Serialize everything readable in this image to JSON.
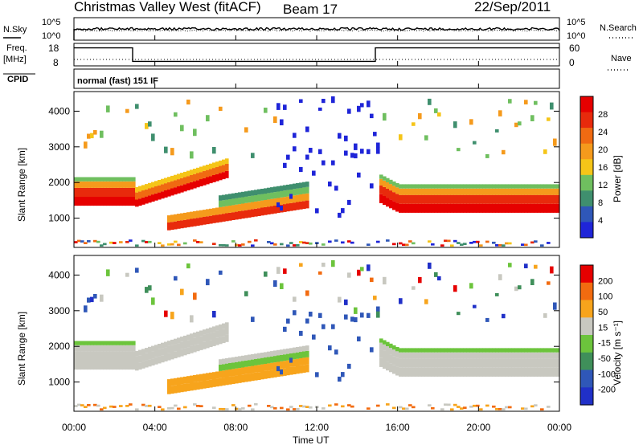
{
  "header": {
    "station": "Christmas Valley West (fitACF)",
    "beam": "Beam 17",
    "date": "22/Sep/2011"
  },
  "labels": {
    "nsky": "N.Sky",
    "nsearch": "N.Search",
    "freq": "Freq.",
    "freq_unit": "[MHz]",
    "nave": "Nave",
    "cpid": "CPID",
    "mode": "normal (fast) 151 IF",
    "x_axis": "Time UT",
    "slant_range": "Slant Range [km]",
    "power_label": "Power [dB]",
    "velocity_label": "Velocity [m s⁻¹]"
  },
  "colors": {
    "power": [
      "#1f25d8",
      "#2f57b8",
      "#3f8f6e",
      "#6fbf5f",
      "#f5c518",
      "#f59a1c",
      "#f06a12",
      "#e82a0c",
      "#e60000"
    ],
    "velocity": [
      "#e60000",
      "#f26b10",
      "#f7a41c",
      "#c8c8c0",
      "#6cc43c",
      "#3f8f5a",
      "#2f57b8",
      "#2030c8"
    ]
  },
  "chart_data": [
    {
      "type": "line",
      "name": "N.Sky / N.Search noise",
      "y_scale": "log",
      "y_ticks": [
        "10^5",
        "10^0"
      ],
      "x_ticks": [
        "00:00",
        "04:00",
        "08:00",
        "12:00",
        "16:00",
        "20:00",
        "00:00"
      ],
      "xlabel": "",
      "ylabel": ""
    },
    {
      "type": "line",
      "name": "Freq / Nave",
      "x_hours": [
        0,
        2.9,
        2.9,
        14.9,
        14.9,
        24
      ],
      "freq_mhz": [
        16,
        16,
        10,
        10,
        16,
        16
      ],
      "left_ticks": [
        "18",
        "8"
      ],
      "right_ticks": [
        "60",
        "0"
      ],
      "xlabel": "",
      "ylabel": "Freq. [MHz]"
    },
    {
      "type": "heatmap",
      "name": "Power",
      "xlabel": "Time UT",
      "ylabel": "Slant Range [km]",
      "x_ticks": [
        "00:00",
        "04:00",
        "08:00",
        "12:00",
        "16:00",
        "20:00",
        "00:00"
      ],
      "y_ticks": [
        1000,
        2000,
        3000,
        4000
      ],
      "xlim_hours": [
        0,
        24
      ],
      "ylim_km": [
        180,
        4550
      ],
      "colorbar": {
        "label": "Power [dB]",
        "ticks": [
          4,
          8,
          12,
          16,
          20,
          24,
          28
        ],
        "range": [
          0,
          32
        ]
      }
    },
    {
      "type": "heatmap",
      "name": "Velocity",
      "xlabel": "Time UT",
      "ylabel": "Slant Range [km]",
      "x_ticks": [
        "00:00",
        "04:00",
        "08:00",
        "12:00",
        "16:00",
        "20:00",
        "00:00"
      ],
      "y_ticks": [
        1000,
        2000,
        3000,
        4000
      ],
      "xlim_hours": [
        0,
        24
      ],
      "ylim_km": [
        180,
        4550
      ],
      "colorbar": {
        "label": "Velocity [m s⁻¹]",
        "ticks": [
          200,
          100,
          50,
          15,
          -15,
          -50,
          -100,
          -200
        ]
      }
    }
  ]
}
